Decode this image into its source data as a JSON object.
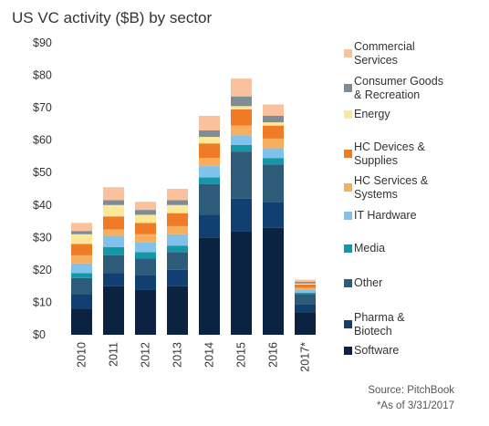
{
  "chart_data": {
    "type": "bar",
    "stacked": true,
    "title": "US VC activity ($B) by sector",
    "categories": [
      "2010",
      "2011",
      "2012",
      "2013",
      "2014",
      "2015",
      "2016",
      "2017*"
    ],
    "ylim": [
      0,
      90
    ],
    "yticks": [
      "$0",
      "$10",
      "$20",
      "$30",
      "$40",
      "$50",
      "$60",
      "$70",
      "$80",
      "$90"
    ],
    "xlabel": "",
    "ylabel": "",
    "grid": false,
    "legend_position": "right",
    "series": [
      {
        "name": "Software",
        "color": "#0b2341",
        "values": [
          8,
          15,
          14,
          15,
          30,
          32,
          33,
          7
        ]
      },
      {
        "name": "Pharma & Biotech",
        "color": "#123f72",
        "values": [
          4.5,
          4,
          4.5,
          5,
          7,
          10,
          8,
          2.5
        ]
      },
      {
        "name": "Other",
        "color": "#2e5b78",
        "values": [
          5,
          5.5,
          5,
          5.5,
          9.5,
          14.5,
          11.5,
          3
        ]
      },
      {
        "name": "Media",
        "color": "#1497a6",
        "values": [
          1.5,
          2.5,
          2,
          2,
          2,
          2,
          2,
          0.5
        ]
      },
      {
        "name": "IT Hardware",
        "color": "#81c2ea",
        "values": [
          3,
          3.5,
          3,
          3.5,
          3.5,
          3,
          3,
          0.8
        ]
      },
      {
        "name": "HC Services & Systems",
        "color": "#f7ae5f",
        "values": [
          2.5,
          2,
          2.5,
          2.5,
          2.5,
          3,
          3,
          0.7
        ]
      },
      {
        "name": "HC Devices & Supplies",
        "color": "#ef7b26",
        "values": [
          3.5,
          4,
          3.5,
          4,
          4.5,
          5,
          4,
          1
        ]
      },
      {
        "name": "Energy",
        "color": "#fde89a",
        "values": [
          3,
          3.5,
          2.5,
          2.5,
          2,
          1,
          1,
          0.3
        ]
      },
      {
        "name": "Consumer Goods & Recreation",
        "color": "#7f8c95",
        "values": [
          1,
          1.5,
          1.5,
          1.5,
          2,
          3,
          2,
          0.5
        ]
      },
      {
        "name": "Commercial Services",
        "color": "#f9c29c",
        "values": [
          2.5,
          4,
          2.5,
          3.5,
          4.5,
          5.5,
          3.5,
          0.7
        ]
      }
    ],
    "legend": [
      {
        "lines": [
          "Commercial",
          "Services"
        ],
        "color": "#f9c29c"
      },
      {
        "lines": [
          "Consumer Goods",
          "& Recreation"
        ],
        "color": "#7f8c95"
      },
      {
        "lines": [
          "Energy"
        ],
        "color": "#fde89a"
      },
      {
        "lines": [
          "HC Devices &",
          "Supplies"
        ],
        "color": "#ef7b26"
      },
      {
        "lines": [
          "HC Services &",
          "Systems"
        ],
        "color": "#f7ae5f"
      },
      {
        "lines": [
          "IT Hardware"
        ],
        "color": "#81c2ea"
      },
      {
        "lines": [
          "Media"
        ],
        "color": "#1497a6"
      },
      {
        "lines": [
          "Other"
        ],
        "color": "#2e5b78"
      },
      {
        "lines": [
          "Pharma &",
          "Biotech"
        ],
        "color": "#123f72"
      },
      {
        "lines": [
          "Software"
        ],
        "color": "#0b2341"
      }
    ]
  },
  "footer": {
    "source": "Source: PitchBook",
    "as_of": "*As of 3/31/2017"
  }
}
